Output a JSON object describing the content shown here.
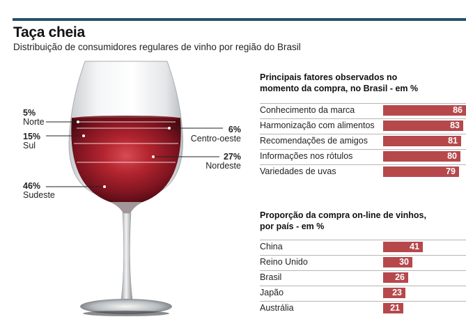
{
  "header": {
    "title": "Taça cheia",
    "subtitle": "Distribuição de consumidores regulares de vinho por região do Brasil"
  },
  "colors": {
    "accent_bar": "#24516b",
    "bar": "#b6484c",
    "wine_dark": "#5e0f18",
    "wine_light": "#c63a42"
  },
  "chart_data": [
    {
      "type": "pie",
      "title": "Distribuição de consumidores regulares de vinho por região do Brasil",
      "categories": [
        "Norte",
        "Sul",
        "Centro-oeste",
        "Nordeste",
        "Sudeste"
      ],
      "values": [
        5,
        15,
        6,
        27,
        46
      ],
      "labels": [
        "5%",
        "15%",
        "6%",
        "27%",
        "46%"
      ]
    },
    {
      "type": "bar",
      "title": "Principais fatores observados no momento da compra, no Brasil - em %",
      "categories": [
        "Conhecimento da marca",
        "Harmonização com alimentos",
        "Recomendações de amigos",
        "Informações nos rótulos",
        "Variedades de uvas"
      ],
      "values": [
        86,
        83,
        81,
        80,
        79
      ],
      "xlim": [
        0,
        86
      ]
    },
    {
      "type": "bar",
      "title": "Proporção da compra on-line de vinhos, por país - em %",
      "categories": [
        "China",
        "Reino Unido",
        "Brasil",
        "Japão",
        "Austrália"
      ],
      "values": [
        41,
        30,
        26,
        23,
        21
      ],
      "xlim": [
        0,
        86
      ]
    }
  ]
}
